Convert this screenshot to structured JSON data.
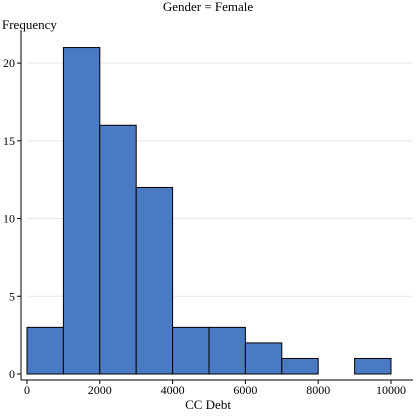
{
  "chart_data": {
    "type": "bar",
    "title": "Gender = Female",
    "xlabel": "CC Debt",
    "ylabel": "Frequency",
    "bin_edges": [
      0,
      1000,
      2000,
      3000,
      4000,
      5000,
      6000,
      7000,
      8000,
      9000,
      10000
    ],
    "values": [
      3,
      21,
      16,
      12,
      3,
      3,
      2,
      1,
      0,
      1
    ],
    "xlim": [
      0,
      10000
    ],
    "ylim": [
      0,
      22
    ],
    "xticks": [
      0,
      2000,
      4000,
      6000,
      8000,
      10000
    ],
    "xtick_labels": [
      "0",
      "2000",
      "4000",
      "6000",
      "8000",
      "10000"
    ],
    "yticks": [
      0,
      5,
      10,
      15,
      20
    ],
    "ytick_labels": [
      "0",
      "5",
      "10",
      "15",
      "20"
    ],
    "grid": "horizontal",
    "colors": {
      "bar_fill": "#4a7ac4",
      "bar_stroke": "#000000",
      "grid": "#e6e6e6",
      "axis": "#000000"
    }
  }
}
